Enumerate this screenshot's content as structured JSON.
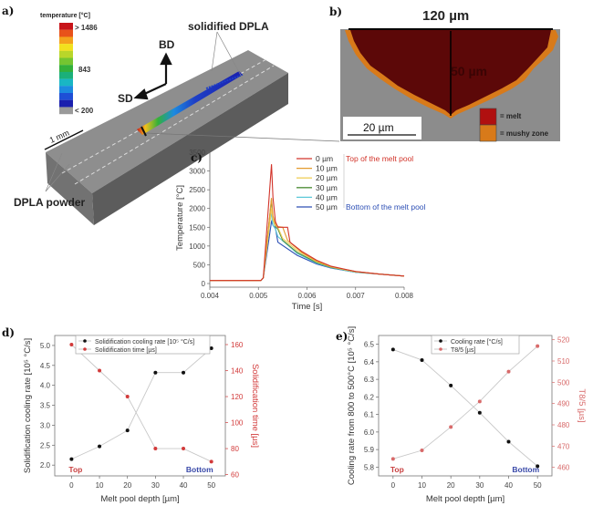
{
  "panel_labels": {
    "a": "a)",
    "b": "b)",
    "c": "c)",
    "d": "d)",
    "e": "e)"
  },
  "panel_a": {
    "colorbar_title": "temperature [°C]",
    "colorbar_max": "> 1486",
    "colorbar_mid": "843",
    "colorbar_min": "< 200",
    "colorbar_colors": [
      "#c8141a",
      "#e8521a",
      "#f4a21c",
      "#f2e11e",
      "#b9d62a",
      "#74c531",
      "#33b03a",
      "#1bb07a",
      "#19b6c4",
      "#1c8ae0",
      "#1e4fd6",
      "#1a1fae",
      "#9a9a9a"
    ],
    "arrow_bd": "BD",
    "arrow_sd": "SD",
    "solidified_label": "solidified DPLA",
    "scale_label": "1 mm",
    "powder_label": "DPLA powder"
  },
  "panel_b": {
    "width_label": "120 µm",
    "depth_label": "50 µm",
    "scale_label": "20 µm",
    "legend": [
      {
        "label": "= melt",
        "color": "#b01010"
      },
      {
        "label": "= mushy zone",
        "color": "#d87a1a"
      }
    ],
    "melt_color": "#5c0808",
    "background_color": "#8c8c8c"
  },
  "chart_data": [
    {
      "id": "c",
      "type": "line",
      "xlabel": "Time [s]",
      "ylabel": "Temperature [°C]",
      "xlim": [
        0.004,
        0.008
      ],
      "ylim": [
        0,
        3500
      ],
      "xticks": [
        "0.004",
        "0.005",
        "0.006",
        "0.007",
        "0.008"
      ],
      "yticks": [
        "0",
        "500",
        "1000",
        "1500",
        "2000",
        "2500",
        "3000",
        "3500"
      ],
      "annotations": {
        "top": "Top of the melt pool",
        "bottom": "Bottom of the melt pool"
      },
      "series": [
        {
          "name": "0 µm",
          "color": "#d2342a",
          "x": [
            0.004,
            0.00505,
            0.0051,
            0.00527,
            0.0053,
            0.00535,
            0.0054,
            0.0056,
            0.00565,
            0.0059,
            0.0062,
            0.0065,
            0.007,
            0.0075,
            0.008
          ],
          "y": [
            80,
            80,
            150,
            3180,
            2300,
            1650,
            1500,
            1500,
            1100,
            850,
            620,
            460,
            320,
            250,
            200
          ]
        },
        {
          "name": "10 µm",
          "color": "#e39a2e",
          "x": [
            0.004,
            0.00505,
            0.0051,
            0.00527,
            0.0053,
            0.00535,
            0.0054,
            0.0055,
            0.0056,
            0.0059,
            0.0062,
            0.0065,
            0.007,
            0.0075,
            0.008
          ],
          "y": [
            80,
            80,
            150,
            2280,
            1800,
            1600,
            1520,
            1500,
            1150,
            820,
            600,
            450,
            320,
            250,
            200
          ]
        },
        {
          "name": "20 µm",
          "color": "#f0d060",
          "x": [
            0.004,
            0.00505,
            0.0051,
            0.00527,
            0.0053,
            0.00535,
            0.0054,
            0.0055,
            0.0058,
            0.0062,
            0.0065,
            0.007,
            0.0075,
            0.008
          ],
          "y": [
            80,
            80,
            150,
            2000,
            1700,
            1550,
            1500,
            1200,
            880,
            580,
            440,
            310,
            250,
            200
          ]
        },
        {
          "name": "30 µm",
          "color": "#4f8f3a",
          "x": [
            0.004,
            0.00505,
            0.0051,
            0.00527,
            0.0053,
            0.00535,
            0.0054,
            0.0055,
            0.0058,
            0.0062,
            0.0065,
            0.007,
            0.0075,
            0.008
          ],
          "y": [
            80,
            80,
            150,
            2250,
            1700,
            1520,
            1450,
            1150,
            830,
            560,
            430,
            310,
            250,
            200
          ]
        },
        {
          "name": "40 µm",
          "color": "#5cc8d8",
          "x": [
            0.004,
            0.00505,
            0.0051,
            0.00526,
            0.0053,
            0.00535,
            0.0054,
            0.0058,
            0.0062,
            0.0065,
            0.007,
            0.0075,
            0.008
          ],
          "y": [
            80,
            80,
            150,
            1900,
            1550,
            1450,
            1250,
            800,
            540,
            420,
            300,
            250,
            200
          ]
        },
        {
          "name": "50 µm",
          "color": "#2d4fb5",
          "x": [
            0.004,
            0.00505,
            0.0051,
            0.00527,
            0.0053,
            0.00535,
            0.0054,
            0.0058,
            0.0062,
            0.0065,
            0.007,
            0.0075,
            0.008
          ],
          "y": [
            80,
            80,
            150,
            1650,
            1550,
            1480,
            1100,
            750,
            520,
            410,
            300,
            250,
            200
          ]
        }
      ]
    },
    {
      "id": "d",
      "type": "line",
      "xlabel": "Melt pool depth [µm]",
      "ylabel": "Solidification cooling rate [10⁵ °C/s]",
      "y2label": "Solidification time [µs]",
      "x": [
        0,
        10,
        20,
        30,
        40,
        50
      ],
      "xlim": [
        -6,
        55
      ],
      "ylim": [
        1.73,
        5.25
      ],
      "y2lim": [
        59,
        167
      ],
      "xticks": [
        "0",
        "10",
        "20",
        "30",
        "40",
        "50"
      ],
      "yticks": [
        "2.0",
        "2.5",
        "3.0",
        "3.5",
        "4.0",
        "4.5",
        "5.0"
      ],
      "y2ticks": [
        "60",
        "80",
        "100",
        "120",
        "140",
        "160"
      ],
      "annotations": {
        "top": "Top",
        "bottom": "Bottom"
      },
      "series": [
        {
          "name": "Solidification cooling rate [10⁵ °C/s]",
          "axis": "left",
          "color": "#111111",
          "values": [
            2.15,
            2.47,
            2.87,
            4.32,
            4.32,
            4.93
          ]
        },
        {
          "name": "Solidification time [µs]",
          "axis": "right",
          "color": "#d23a3a",
          "values": [
            160,
            140,
            120,
            80,
            80,
            70
          ]
        }
      ],
      "legend_position": "top"
    },
    {
      "id": "e",
      "type": "line",
      "xlabel": "Melt pool depth [µm]",
      "ylabel": "Cooling rate from 800 to 500°C [10⁵ °C/s]",
      "y2label": "T8/5 [µs]",
      "x": [
        0,
        10,
        20,
        30,
        40,
        50
      ],
      "xlim": [
        -5,
        55
      ],
      "ylim": [
        5.75,
        6.55
      ],
      "y2lim": [
        456,
        522
      ],
      "xticks": [
        "0",
        "10",
        "20",
        "30",
        "40",
        "50"
      ],
      "yticks": [
        "5.8",
        "5.9",
        "6.0",
        "6.1",
        "6.2",
        "6.3",
        "6.4",
        "6.5"
      ],
      "y2ticks": [
        "460",
        "470",
        "480",
        "490",
        "500",
        "510",
        "520"
      ],
      "annotations": {
        "top": "Top",
        "bottom": "Bottom"
      },
      "series": [
        {
          "name": "Cooling rate [°C/s]",
          "axis": "left",
          "color": "#111111",
          "values": [
            6.47,
            6.41,
            6.265,
            6.11,
            5.945,
            5.805
          ]
        },
        {
          "name": "T8/5 [µs]",
          "axis": "right",
          "color": "#d86a6a",
          "values": [
            464,
            468,
            479,
            491,
            505,
            517
          ]
        }
      ],
      "legend_position": "top"
    }
  ]
}
